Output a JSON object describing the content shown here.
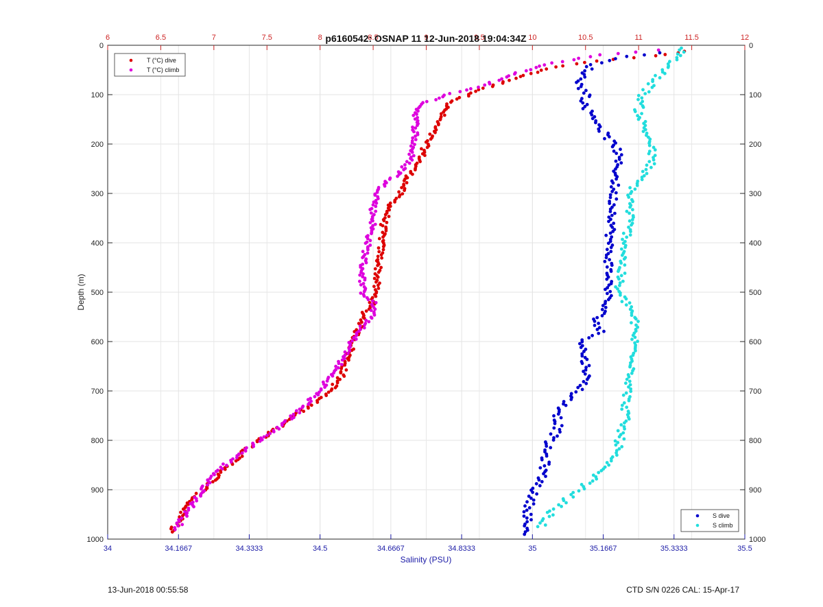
{
  "chart_data": {
    "type": "scatter",
    "title": "p6160542: OSNAP 11 12-Jun-2018 19:04:34Z",
    "xlabel": "Salinity (PSU)",
    "ylabel": "Depth (m)",
    "salinity_axis": {
      "range": [
        34,
        35.5
      ],
      "ticks": [
        34,
        34.1667,
        34.3333,
        34.5,
        34.6667,
        34.8333,
        35,
        35.1667,
        35.3333,
        35.5
      ],
      "tick_labels": [
        "34",
        "34.1667",
        "34.3333",
        "34.5",
        "34.6667",
        "34.8333",
        "35",
        "35.1667",
        "35.3333",
        "35.5"
      ]
    },
    "temperature_axis": {
      "range": [
        6,
        12
      ],
      "ticks": [
        6,
        6.5,
        7,
        7.5,
        8,
        8.5,
        9,
        9.5,
        10,
        10.5,
        11,
        11.5,
        12
      ],
      "tick_labels": [
        "6",
        "6.5",
        "7",
        "7.5",
        "8",
        "8.5",
        "9",
        "9.5",
        "10",
        "10.5",
        "11",
        "11.5",
        "12"
      ]
    },
    "depth_axis": {
      "range": [
        0,
        1000
      ],
      "reversed": true,
      "ticks": [
        0,
        100,
        200,
        300,
        400,
        500,
        600,
        700,
        800,
        900,
        1000
      ],
      "tick_labels": [
        "0",
        "100",
        "200",
        "300",
        "400",
        "500",
        "600",
        "700",
        "800",
        "900",
        "1000"
      ]
    },
    "grid": true,
    "legend_temperature": "top-left",
    "legend_salinity": "bottom-right",
    "series": [
      {
        "name": "T (°C) dive",
        "variable": "temperature",
        "color": "#dd0000",
        "profile": [
          [
            12,
            11.45
          ],
          [
            20,
            11.2
          ],
          [
            30,
            10.7
          ],
          [
            40,
            10.3
          ],
          [
            50,
            10.1
          ],
          [
            60,
            9.95
          ],
          [
            70,
            9.8
          ],
          [
            80,
            9.65
          ],
          [
            95,
            9.45
          ],
          [
            110,
            9.3
          ],
          [
            120,
            9.2
          ],
          [
            140,
            9.15
          ],
          [
            160,
            9.1
          ],
          [
            180,
            9.05
          ],
          [
            200,
            9.0
          ],
          [
            230,
            8.95
          ],
          [
            260,
            8.85
          ],
          [
            300,
            8.75
          ],
          [
            330,
            8.65
          ],
          [
            360,
            8.6
          ],
          [
            400,
            8.58
          ],
          [
            450,
            8.55
          ],
          [
            500,
            8.52
          ],
          [
            520,
            8.5
          ],
          [
            540,
            8.42
          ],
          [
            560,
            8.4
          ],
          [
            580,
            8.35
          ],
          [
            610,
            8.3
          ],
          [
            640,
            8.25
          ],
          [
            670,
            8.2
          ],
          [
            700,
            8.1
          ],
          [
            730,
            7.9
          ],
          [
            760,
            7.7
          ],
          [
            790,
            7.5
          ],
          [
            820,
            7.3
          ],
          [
            850,
            7.15
          ],
          [
            880,
            7.0
          ],
          [
            910,
            6.85
          ],
          [
            930,
            6.75
          ],
          [
            950,
            6.7
          ],
          [
            970,
            6.65
          ],
          [
            985,
            6.6
          ]
        ]
      },
      {
        "name": "T (°C) climb",
        "variable": "temperature",
        "color": "#dd00dd",
        "profile": [
          [
            10,
            11.2
          ],
          [
            20,
            10.6
          ],
          [
            30,
            10.35
          ],
          [
            40,
            10.1
          ],
          [
            50,
            9.95
          ],
          [
            60,
            9.8
          ],
          [
            70,
            9.7
          ],
          [
            80,
            9.55
          ],
          [
            90,
            9.4
          ],
          [
            100,
            9.2
          ],
          [
            115,
            9.0
          ],
          [
            130,
            8.92
          ],
          [
            150,
            8.9
          ],
          [
            180,
            8.9
          ],
          [
            200,
            8.88
          ],
          [
            230,
            8.85
          ],
          [
            260,
            8.75
          ],
          [
            280,
            8.6
          ],
          [
            300,
            8.55
          ],
          [
            330,
            8.5
          ],
          [
            360,
            8.5
          ],
          [
            400,
            8.45
          ],
          [
            450,
            8.4
          ],
          [
            500,
            8.4
          ],
          [
            520,
            8.5
          ],
          [
            540,
            8.5
          ],
          [
            560,
            8.45
          ],
          [
            580,
            8.35
          ],
          [
            610,
            8.28
          ],
          [
            640,
            8.2
          ],
          [
            670,
            8.1
          ],
          [
            700,
            8.0
          ],
          [
            730,
            7.85
          ],
          [
            760,
            7.7
          ],
          [
            790,
            7.5
          ],
          [
            820,
            7.3
          ],
          [
            850,
            7.1
          ],
          [
            880,
            6.95
          ],
          [
            900,
            6.9
          ],
          [
            930,
            6.8
          ],
          [
            960,
            6.7
          ],
          [
            980,
            6.65
          ]
        ]
      },
      {
        "name": "S dive",
        "variable": "salinity",
        "color": "#0000cc",
        "profile": [
          [
            15,
            35.3
          ],
          [
            25,
            35.2
          ],
          [
            40,
            35.14
          ],
          [
            60,
            35.12
          ],
          [
            80,
            35.11
          ],
          [
            100,
            35.13
          ],
          [
            120,
            35.12
          ],
          [
            150,
            35.15
          ],
          [
            180,
            35.17
          ],
          [
            210,
            35.2
          ],
          [
            250,
            35.2
          ],
          [
            300,
            35.19
          ],
          [
            350,
            35.19
          ],
          [
            400,
            35.18
          ],
          [
            450,
            35.18
          ],
          [
            500,
            35.18
          ],
          [
            530,
            35.17
          ],
          [
            560,
            35.15
          ],
          [
            580,
            35.16
          ],
          [
            600,
            35.12
          ],
          [
            630,
            35.12
          ],
          [
            660,
            35.13
          ],
          [
            690,
            35.12
          ],
          [
            720,
            35.08
          ],
          [
            750,
            35.06
          ],
          [
            780,
            35.06
          ],
          [
            800,
            35.04
          ],
          [
            820,
            35.03
          ],
          [
            850,
            35.03
          ],
          [
            880,
            35.02
          ],
          [
            910,
            35.0
          ],
          [
            940,
            34.99
          ],
          [
            960,
            34.99
          ],
          [
            980,
            34.98
          ],
          [
            990,
            34.98
          ]
        ]
      },
      {
        "name": "S climb",
        "variable": "salinity",
        "color": "#22dddd",
        "profile": [
          [
            5,
            35.35
          ],
          [
            20,
            35.35
          ],
          [
            40,
            35.32
          ],
          [
            60,
            35.3
          ],
          [
            80,
            35.28
          ],
          [
            100,
            35.26
          ],
          [
            130,
            35.25
          ],
          [
            160,
            35.26
          ],
          [
            200,
            35.28
          ],
          [
            240,
            35.28
          ],
          [
            260,
            35.26
          ],
          [
            300,
            35.23
          ],
          [
            350,
            35.23
          ],
          [
            400,
            35.22
          ],
          [
            450,
            35.21
          ],
          [
            500,
            35.2
          ],
          [
            530,
            35.23
          ],
          [
            560,
            35.24
          ],
          [
            600,
            35.24
          ],
          [
            640,
            35.24
          ],
          [
            680,
            35.23
          ],
          [
            720,
            35.22
          ],
          [
            750,
            35.22
          ],
          [
            780,
            35.21
          ],
          [
            820,
            35.2
          ],
          [
            850,
            35.17
          ],
          [
            880,
            35.14
          ],
          [
            900,
            35.11
          ],
          [
            920,
            35.08
          ],
          [
            940,
            35.05
          ],
          [
            960,
            35.03
          ],
          [
            975,
            35.02
          ]
        ]
      }
    ]
  },
  "footer": {
    "left": "13-Jun-2018 00:55:58",
    "right": "CTD S/N 0226  CAL: 15-Apr-17"
  }
}
